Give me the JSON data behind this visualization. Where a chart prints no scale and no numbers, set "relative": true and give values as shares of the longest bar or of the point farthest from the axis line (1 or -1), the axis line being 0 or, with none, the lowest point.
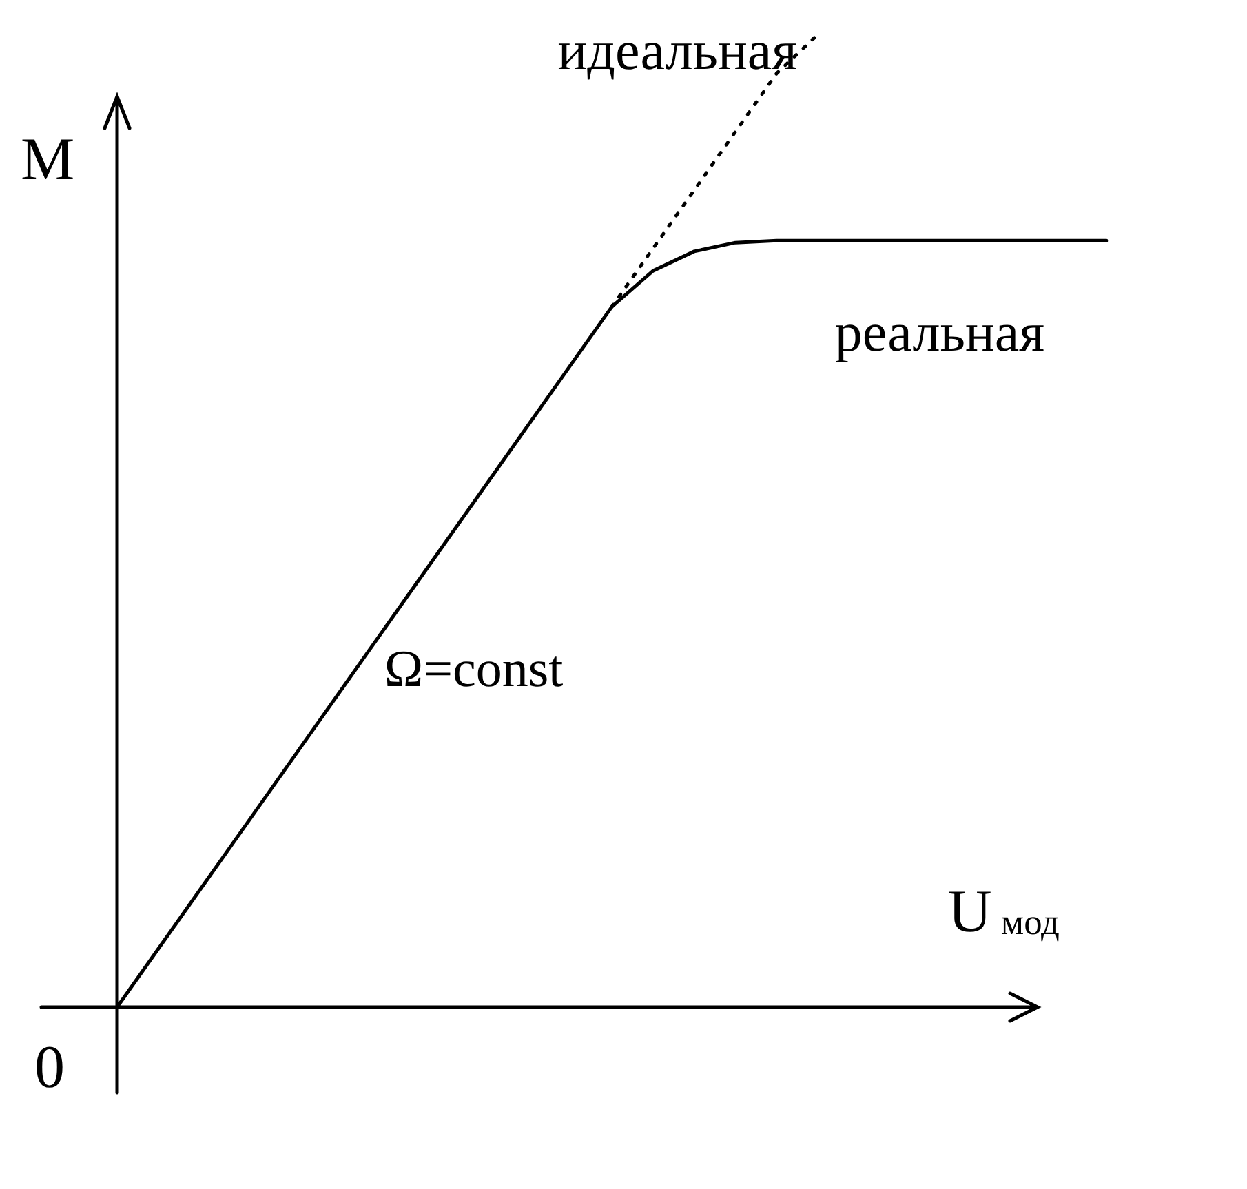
{
  "chart_data": {
    "type": "line",
    "xlabel": "U$_{мод}$",
    "ylabel": "М",
    "relative": true,
    "legend": false,
    "marker": "none",
    "annotations": [
      "0",
      "Ω=const"
    ],
    "categories": [
      null,
      null,
      null,
      null,
      null,
      null,
      null,
      null,
      null,
      null,
      null,
      null,
      null,
      null,
      null,
      null,
      null,
      null,
      null,
      null,
      null,
      null,
      null,
      null,
      null
    ],
    "series": [
      {
        "name": "идеальная",
        "color": "#000000",
        "line_style": "dotted",
        "values": [
          null,
          null,
          null,
          null,
          null,
          null,
          null,
          null,
          null,
          null,
          null,
          null,
          0.72,
          0.78,
          0.84,
          0.9,
          0.96,
          1.0,
          null,
          null,
          null,
          null,
          null,
          null,
          null
        ]
      },
      {
        "name": "реальная",
        "color": "#000000",
        "line_style": "solid",
        "values": [
          0,
          0.06,
          0.12,
          0.18,
          0.24,
          0.3,
          0.36,
          0.42,
          0.48,
          0.54,
          0.6,
          0.66,
          0.72,
          0.757,
          0.777,
          0.786,
          0.788,
          0.788,
          0.788,
          0.788,
          0.788,
          0.788,
          0.788,
          0.788,
          0.788
        ]
      }
    ]
  }
}
